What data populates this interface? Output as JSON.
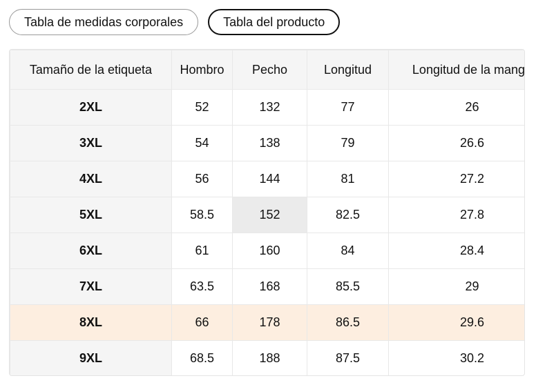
{
  "tabs": [
    "Tabla de medidas corporales",
    "Tabla del producto"
  ],
  "table": {
    "headers": [
      "Tamaño de la etiqueta",
      "Hombro",
      "Pecho",
      "Longitud",
      "Longitud de la manga"
    ],
    "rows": [
      [
        "2XL",
        "52",
        "132",
        "77",
        "26"
      ],
      [
        "3XL",
        "54",
        "138",
        "79",
        "26.6"
      ],
      [
        "4XL",
        "56",
        "144",
        "81",
        "27.2"
      ],
      [
        "5XL",
        "58.5",
        "152",
        "82.5",
        "27.8"
      ],
      [
        "6XL",
        "61",
        "160",
        "84",
        "28.4"
      ],
      [
        "7XL",
        "63.5",
        "168",
        "85.5",
        "29"
      ],
      [
        "8XL",
        "66",
        "178",
        "86.5",
        "29.6"
      ],
      [
        "9XL",
        "68.5",
        "188",
        "87.5",
        "30.2"
      ]
    ]
  }
}
